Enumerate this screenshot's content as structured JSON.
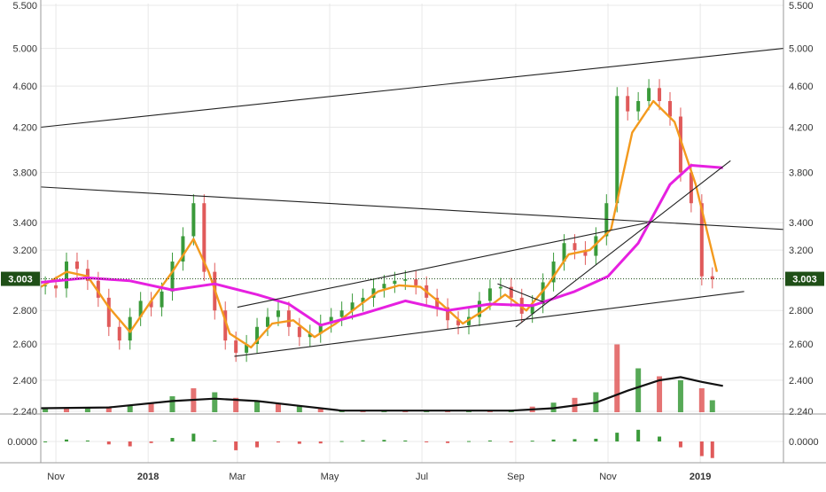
{
  "chart_data": {
    "type": "candlestick",
    "title": "",
    "price_axis": {
      "scale": "log",
      "ylim": [
        2.24,
        5.5
      ],
      "ticks": [
        5.5,
        5.0,
        4.6,
        4.2,
        3.8,
        3.4,
        3.2,
        2.8,
        2.6,
        2.4,
        2.24
      ],
      "tick_labels": [
        "5.500",
        "5.000",
        "4.600",
        "4.200",
        "3.800",
        "3.400",
        "3.200",
        "2.800",
        "2.600",
        "2.400",
        "2.240"
      ]
    },
    "last_price": {
      "value": 3.003,
      "label": "3.003"
    },
    "time_axis": {
      "ticks": [
        {
          "label": "Nov",
          "date": "2017-11-01",
          "bold": false
        },
        {
          "label": "2018",
          "date": "2018-01-01",
          "bold": true
        },
        {
          "label": "Mar",
          "date": "2018-03-01",
          "bold": false
        },
        {
          "label": "May",
          "date": "2018-05-01",
          "bold": false
        },
        {
          "label": "Jul",
          "date": "2018-07-01",
          "bold": false
        },
        {
          "label": "Sep",
          "date": "2018-09-01",
          "bold": false
        },
        {
          "label": "Nov",
          "date": "2018-11-01",
          "bold": false
        },
        {
          "label": "2019",
          "date": "2019-01-01",
          "bold": true
        }
      ],
      "range": [
        "2017-10-22",
        "2019-02-25"
      ]
    },
    "price_series": [
      {
        "date": "2017-10-25",
        "close": 2.96
      },
      {
        "date": "2017-11-01",
        "close": 2.94
      },
      {
        "date": "2017-11-08",
        "close": 3.12
      },
      {
        "date": "2017-11-15",
        "close": 3.07
      },
      {
        "date": "2017-11-22",
        "close": 2.99
      },
      {
        "date": "2017-11-29",
        "close": 2.88
      },
      {
        "date": "2017-12-06",
        "close": 2.7
      },
      {
        "date": "2017-12-13",
        "close": 2.62
      },
      {
        "date": "2017-12-20",
        "close": 2.76
      },
      {
        "date": "2017-12-27",
        "close": 2.86
      },
      {
        "date": "2018-01-03",
        "close": 2.82
      },
      {
        "date": "2018-01-10",
        "close": 2.92
      },
      {
        "date": "2018-01-17",
        "close": 3.12
      },
      {
        "date": "2018-01-24",
        "close": 3.3
      },
      {
        "date": "2018-01-31",
        "close": 3.55
      },
      {
        "date": "2018-02-07",
        "close": 3.05
      },
      {
        "date": "2018-02-14",
        "close": 2.8
      },
      {
        "date": "2018-02-21",
        "close": 2.62
      },
      {
        "date": "2018-02-28",
        "close": 2.55
      },
      {
        "date": "2018-03-07",
        "close": 2.6
      },
      {
        "date": "2018-03-14",
        "close": 2.7
      },
      {
        "date": "2018-03-21",
        "close": 2.76
      },
      {
        "date": "2018-03-28",
        "close": 2.8
      },
      {
        "date": "2018-04-04",
        "close": 2.7
      },
      {
        "date": "2018-04-11",
        "close": 2.64
      },
      {
        "date": "2018-04-18",
        "close": 2.66
      },
      {
        "date": "2018-04-25",
        "close": 2.72
      },
      {
        "date": "2018-05-02",
        "close": 2.76
      },
      {
        "date": "2018-05-09",
        "close": 2.8
      },
      {
        "date": "2018-05-16",
        "close": 2.85
      },
      {
        "date": "2018-05-23",
        "close": 2.88
      },
      {
        "date": "2018-05-30",
        "close": 2.94
      },
      {
        "date": "2018-06-06",
        "close": 2.97
      },
      {
        "date": "2018-06-13",
        "close": 2.99
      },
      {
        "date": "2018-06-20",
        "close": 3.0
      },
      {
        "date": "2018-06-27",
        "close": 2.96
      },
      {
        "date": "2018-07-04",
        "close": 2.88
      },
      {
        "date": "2018-07-11",
        "close": 2.82
      },
      {
        "date": "2018-07-18",
        "close": 2.74
      },
      {
        "date": "2018-07-25",
        "close": 2.71
      },
      {
        "date": "2018-08-01",
        "close": 2.76
      },
      {
        "date": "2018-08-08",
        "close": 2.86
      },
      {
        "date": "2018-08-15",
        "close": 2.94
      },
      {
        "date": "2018-08-22",
        "close": 2.95
      },
      {
        "date": "2018-08-29",
        "close": 2.88
      },
      {
        "date": "2018-09-05",
        "close": 2.78
      },
      {
        "date": "2018-09-12",
        "close": 2.84
      },
      {
        "date": "2018-09-19",
        "close": 2.98
      },
      {
        "date": "2018-09-26",
        "close": 3.12
      },
      {
        "date": "2018-10-03",
        "close": 3.25
      },
      {
        "date": "2018-10-10",
        "close": 3.2
      },
      {
        "date": "2018-10-17",
        "close": 3.16
      },
      {
        "date": "2018-10-24",
        "close": 3.3
      },
      {
        "date": "2018-10-31",
        "close": 3.55
      },
      {
        "date": "2018-11-07",
        "close": 4.5
      },
      {
        "date": "2018-11-14",
        "close": 4.35
      },
      {
        "date": "2018-11-21",
        "close": 4.45
      },
      {
        "date": "2018-11-28",
        "close": 4.58
      },
      {
        "date": "2018-12-05",
        "close": 4.45
      },
      {
        "date": "2018-12-12",
        "close": 4.3
      },
      {
        "date": "2018-12-19",
        "close": 3.8
      },
      {
        "date": "2018-12-26",
        "close": 3.55
      },
      {
        "date": "2019-01-02",
        "close": 3.02
      },
      {
        "date": "2019-01-09",
        "close": 3.0
      }
    ],
    "overlays": [
      {
        "kind": "moving_average",
        "color": "#f39a1e",
        "points": [
          {
            "date": "2017-10-22",
            "value": 2.95
          },
          {
            "date": "2017-11-08",
            "value": 3.05
          },
          {
            "date": "2017-11-22",
            "value": 3.02
          },
          {
            "date": "2017-12-06",
            "value": 2.82
          },
          {
            "date": "2017-12-20",
            "value": 2.67
          },
          {
            "date": "2018-01-03",
            "value": 2.86
          },
          {
            "date": "2018-01-17",
            "value": 3.05
          },
          {
            "date": "2018-01-31",
            "value": 3.28
          },
          {
            "date": "2018-02-10",
            "value": 3.05
          },
          {
            "date": "2018-02-24",
            "value": 2.66
          },
          {
            "date": "2018-03-10",
            "value": 2.58
          },
          {
            "date": "2018-03-24",
            "value": 2.72
          },
          {
            "date": "2018-04-07",
            "value": 2.74
          },
          {
            "date": "2018-04-21",
            "value": 2.64
          },
          {
            "date": "2018-05-05",
            "value": 2.72
          },
          {
            "date": "2018-05-19",
            "value": 2.82
          },
          {
            "date": "2018-06-02",
            "value": 2.92
          },
          {
            "date": "2018-06-16",
            "value": 2.96
          },
          {
            "date": "2018-06-30",
            "value": 2.95
          },
          {
            "date": "2018-07-14",
            "value": 2.84
          },
          {
            "date": "2018-07-28",
            "value": 2.72
          },
          {
            "date": "2018-08-11",
            "value": 2.8
          },
          {
            "date": "2018-08-25",
            "value": 2.9
          },
          {
            "date": "2018-09-08",
            "value": 2.8
          },
          {
            "date": "2018-09-22",
            "value": 2.96
          },
          {
            "date": "2018-10-06",
            "value": 3.17
          },
          {
            "date": "2018-10-20",
            "value": 3.2
          },
          {
            "date": "2018-11-03",
            "value": 3.35
          },
          {
            "date": "2018-11-17",
            "value": 4.15
          },
          {
            "date": "2018-12-01",
            "value": 4.45
          },
          {
            "date": "2018-12-15",
            "value": 4.25
          },
          {
            "date": "2018-12-29",
            "value": 3.7
          },
          {
            "date": "2019-01-12",
            "value": 3.05
          }
        ]
      },
      {
        "kind": "moving_average",
        "color": "#e620e0",
        "points": [
          {
            "date": "2017-10-22",
            "value": 2.98
          },
          {
            "date": "2017-11-22",
            "value": 3.01
          },
          {
            "date": "2017-12-20",
            "value": 2.99
          },
          {
            "date": "2018-01-17",
            "value": 2.93
          },
          {
            "date": "2018-02-14",
            "value": 2.97
          },
          {
            "date": "2018-03-14",
            "value": 2.9
          },
          {
            "date": "2018-04-04",
            "value": 2.84
          },
          {
            "date": "2018-04-25",
            "value": 2.71
          },
          {
            "date": "2018-05-23",
            "value": 2.78
          },
          {
            "date": "2018-06-20",
            "value": 2.86
          },
          {
            "date": "2018-07-18",
            "value": 2.8
          },
          {
            "date": "2018-08-15",
            "value": 2.84
          },
          {
            "date": "2018-09-12",
            "value": 2.83
          },
          {
            "date": "2018-10-10",
            "value": 2.92
          },
          {
            "date": "2018-11-01",
            "value": 3.02
          },
          {
            "date": "2018-11-21",
            "value": 3.25
          },
          {
            "date": "2018-12-12",
            "value": 3.7
          },
          {
            "date": "2018-12-26",
            "value": 3.86
          },
          {
            "date": "2019-01-16",
            "value": 3.84
          }
        ]
      }
    ],
    "trendlines": [
      {
        "from": {
          "date": "2017-10-22",
          "value": 4.2
        },
        "to": {
          "date": "2019-02-25",
          "value": 5.0
        }
      },
      {
        "from": {
          "date": "2017-10-22",
          "value": 3.68
        },
        "to": {
          "date": "2019-02-25",
          "value": 3.35
        }
      },
      {
        "from": {
          "date": "2018-02-27",
          "value": 2.53
        },
        "to": {
          "date": "2019-01-30",
          "value": 2.92
        }
      },
      {
        "from": {
          "date": "2018-03-01",
          "value": 2.82
        },
        "to": {
          "date": "2018-11-27",
          "value": 3.4
        }
      },
      {
        "from": {
          "date": "2018-09-01",
          "value": 2.7
        },
        "to": {
          "date": "2019-01-21",
          "value": 3.9
        }
      },
      {
        "from": {
          "date": "2018-08-20",
          "value": 2.97
        },
        "to": {
          "date": "2018-09-20",
          "value": 2.85
        }
      }
    ],
    "volume_series": [
      {
        "date": "2017-10-25",
        "value": 0.04
      },
      {
        "date": "2017-11-08",
        "value": 0.05
      },
      {
        "date": "2017-11-22",
        "value": 0.06
      },
      {
        "date": "2017-12-06",
        "value": 0.07
      },
      {
        "date": "2017-12-20",
        "value": 0.08
      },
      {
        "date": "2018-01-03",
        "value": 0.12
      },
      {
        "date": "2018-01-17",
        "value": 0.2
      },
      {
        "date": "2018-01-31",
        "value": 0.3
      },
      {
        "date": "2018-02-14",
        "value": 0.25
      },
      {
        "date": "2018-02-28",
        "value": 0.18
      },
      {
        "date": "2018-03-14",
        "value": 0.14
      },
      {
        "date": "2018-03-28",
        "value": 0.1
      },
      {
        "date": "2018-04-11",
        "value": 0.08
      },
      {
        "date": "2018-04-25",
        "value": 0.05
      },
      {
        "date": "2018-05-09",
        "value": 0.03
      },
      {
        "date": "2018-05-23",
        "value": 0.02
      },
      {
        "date": "2018-06-06",
        "value": 0.02
      },
      {
        "date": "2018-06-20",
        "value": 0.02
      },
      {
        "date": "2018-07-04",
        "value": 0.02
      },
      {
        "date": "2018-07-18",
        "value": 0.02
      },
      {
        "date": "2018-08-01",
        "value": 0.02
      },
      {
        "date": "2018-08-15",
        "value": 0.02
      },
      {
        "date": "2018-08-29",
        "value": 0.03
      },
      {
        "date": "2018-09-12",
        "value": 0.07
      },
      {
        "date": "2018-09-26",
        "value": 0.12
      },
      {
        "date": "2018-10-10",
        "value": 0.18
      },
      {
        "date": "2018-10-24",
        "value": 0.25
      },
      {
        "date": "2018-11-07",
        "value": 0.85
      },
      {
        "date": "2018-11-21",
        "value": 0.55
      },
      {
        "date": "2018-12-05",
        "value": 0.45
      },
      {
        "date": "2018-12-19",
        "value": 0.4
      },
      {
        "date": "2019-01-02",
        "value": 0.3
      },
      {
        "date": "2019-01-09",
        "value": 0.15
      }
    ],
    "volume_ma": [
      {
        "date": "2017-10-22",
        "value": 0.05
      },
      {
        "date": "2017-12-06",
        "value": 0.06
      },
      {
        "date": "2018-01-17",
        "value": 0.14
      },
      {
        "date": "2018-02-14",
        "value": 0.17
      },
      {
        "date": "2018-03-14",
        "value": 0.14
      },
      {
        "date": "2018-04-11",
        "value": 0.08
      },
      {
        "date": "2018-05-09",
        "value": 0.02
      },
      {
        "date": "2018-07-04",
        "value": 0.02
      },
      {
        "date": "2018-08-29",
        "value": 0.02
      },
      {
        "date": "2018-09-26",
        "value": 0.05
      },
      {
        "date": "2018-10-24",
        "value": 0.12
      },
      {
        "date": "2018-11-14",
        "value": 0.27
      },
      {
        "date": "2018-12-05",
        "value": 0.4
      },
      {
        "date": "2018-12-19",
        "value": 0.44
      },
      {
        "date": "2019-01-02",
        "value": 0.38
      },
      {
        "date": "2019-01-16",
        "value": 0.33
      }
    ],
    "oscillator": {
      "ticks": [
        0.0
      ],
      "tick_labels": [
        "0.0000"
      ],
      "ylim": [
        -1,
        1
      ],
      "series": [
        {
          "date": "2017-10-25",
          "value": 0.0
        },
        {
          "date": "2017-11-08",
          "value": 0.1
        },
        {
          "date": "2017-11-22",
          "value": 0.05
        },
        {
          "date": "2017-12-06",
          "value": -0.15
        },
        {
          "date": "2017-12-20",
          "value": -0.25
        },
        {
          "date": "2018-01-03",
          "value": -0.08
        },
        {
          "date": "2018-01-17",
          "value": 0.18
        },
        {
          "date": "2018-01-31",
          "value": 0.4
        },
        {
          "date": "2018-02-14",
          "value": 0.05
        },
        {
          "date": "2018-02-28",
          "value": -0.45
        },
        {
          "date": "2018-03-14",
          "value": -0.3
        },
        {
          "date": "2018-03-28",
          "value": -0.05
        },
        {
          "date": "2018-04-11",
          "value": -0.12
        },
        {
          "date": "2018-04-25",
          "value": -0.1
        },
        {
          "date": "2018-05-09",
          "value": 0.02
        },
        {
          "date": "2018-05-23",
          "value": 0.06
        },
        {
          "date": "2018-06-06",
          "value": 0.08
        },
        {
          "date": "2018-06-20",
          "value": 0.05
        },
        {
          "date": "2018-07-04",
          "value": -0.04
        },
        {
          "date": "2018-07-18",
          "value": -0.08
        },
        {
          "date": "2018-08-01",
          "value": 0.02
        },
        {
          "date": "2018-08-15",
          "value": 0.05
        },
        {
          "date": "2018-08-29",
          "value": -0.03
        },
        {
          "date": "2018-09-12",
          "value": 0.04
        },
        {
          "date": "2018-09-26",
          "value": 0.1
        },
        {
          "date": "2018-10-10",
          "value": 0.12
        },
        {
          "date": "2018-10-24",
          "value": 0.14
        },
        {
          "date": "2018-11-07",
          "value": 0.45
        },
        {
          "date": "2018-11-21",
          "value": 0.6
        },
        {
          "date": "2018-12-05",
          "value": 0.25
        },
        {
          "date": "2018-12-19",
          "value": -0.3
        },
        {
          "date": "2019-01-02",
          "value": -0.75
        },
        {
          "date": "2019-01-09",
          "value": -0.85
        }
      ]
    },
    "colors": {
      "up": "#3a9a3a",
      "down": "#e05a5a",
      "fast_ma": "#f39a1e",
      "slow_ma": "#e620e0",
      "last_price_badge": "#1f4f17",
      "trendline": "#222222"
    },
    "grid": true
  }
}
